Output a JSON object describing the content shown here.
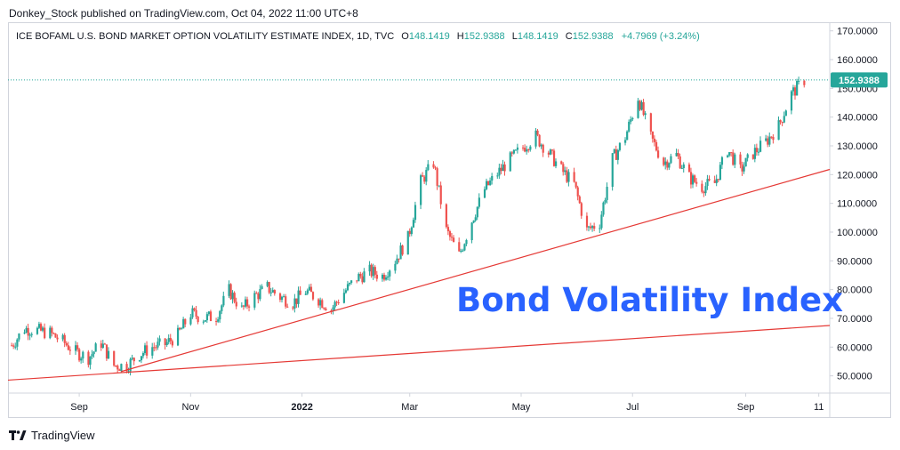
{
  "header": {
    "publisher": "Donkey_Stock published on TradingView.com, Oct 04, 2022 11:00 UTC+8"
  },
  "legend": {
    "symbol": "ICE BOFAML U.S. BOND MARKET OPTION VOLATILITY ESTIMATE INDEX, 1D, TVC",
    "o_label": "O",
    "o_value": "148.1419",
    "h_label": "H",
    "h_value": "152.9388",
    "l_label": "L",
    "l_value": "148.1419",
    "c_label": "C",
    "c_value": "152.9388",
    "change": "+4.7969 (+3.24%)"
  },
  "price_tag": "152.9388",
  "annotation": "Bond Volatility Index",
  "footer": {
    "brand": "TradingView",
    "logo_icon": "tradingview-logo-icon"
  },
  "colors": {
    "up": "#26a69a",
    "down": "#ef5350",
    "trendline": "#e53935",
    "annotation": "#2962ff",
    "price_tag": "#26a69a"
  },
  "chart_data": {
    "type": "candlestick",
    "title": "",
    "ylim": [
      44,
      173
    ],
    "ytick_labels": [
      "50.0000",
      "60.0000",
      "70.0000",
      "80.0000",
      "90.0000",
      "100.0000",
      "110.0000",
      "120.0000",
      "130.0000",
      "140.0000",
      "150.0000",
      "160.0000",
      "170.0000"
    ],
    "xtick_labels": [
      "Sep",
      "Nov",
      "2022",
      "Mar",
      "May",
      "Jul",
      "Sep",
      "11"
    ],
    "xtick_dates": [
      "2021-09-01",
      "2021-11-01",
      "2022-01-01",
      "2022-03-01",
      "2022-05-01",
      "2022-07-01",
      "2022-09-01",
      "2022-10-11"
    ],
    "x_range": [
      "2021-07-24",
      "2022-10-17"
    ],
    "closes": [
      [
        "2021-07-26",
        60.6
      ],
      [
        "2021-08-02",
        66.4
      ],
      [
        "2021-08-09",
        65.8
      ],
      [
        "2021-08-16",
        64.8
      ],
      [
        "2021-08-23",
        61.9
      ],
      [
        "2021-08-30",
        58.3
      ],
      [
        "2021-09-06",
        56.3
      ],
      [
        "2021-09-13",
        61.5
      ],
      [
        "2021-09-20",
        53.6
      ],
      [
        "2021-09-27",
        53.5
      ],
      [
        "2021-10-04",
        57.5
      ],
      [
        "2021-10-11",
        60.0
      ],
      [
        "2021-10-18",
        61.0
      ],
      [
        "2021-10-25",
        64.2
      ],
      [
        "2021-11-01",
        71.7
      ],
      [
        "2021-11-08",
        70.1
      ],
      [
        "2021-11-15",
        70.7
      ],
      [
        "2021-11-22",
        79.7
      ],
      [
        "2021-11-29",
        73.0
      ],
      [
        "2021-12-06",
        77.6
      ],
      [
        "2021-12-13",
        80.7
      ],
      [
        "2021-12-20",
        77.4
      ],
      [
        "2021-12-27",
        75.5
      ],
      [
        "2022-01-03",
        79.5
      ],
      [
        "2022-01-10",
        76.7
      ],
      [
        "2022-01-17",
        73.2
      ],
      [
        "2022-01-24",
        79.1
      ],
      [
        "2022-01-31",
        84.0
      ],
      [
        "2022-02-07",
        86.3
      ],
      [
        "2022-02-14",
        84.7
      ],
      [
        "2022-02-21",
        90.2
      ],
      [
        "2022-02-28",
        97.9
      ],
      [
        "2022-03-07",
        117.5
      ],
      [
        "2022-03-14",
        124.1
      ],
      [
        "2022-03-21",
        100.5
      ],
      [
        "2022-03-28",
        91.9
      ],
      [
        "2022-04-04",
        104.1
      ],
      [
        "2022-04-11",
        114.9
      ],
      [
        "2022-04-18",
        120.4
      ],
      [
        "2022-04-25",
        125.3
      ],
      [
        "2022-05-02",
        129.5
      ],
      [
        "2022-05-09",
        133.3
      ],
      [
        "2022-05-16",
        127.7
      ],
      [
        "2022-05-23",
        121.6
      ],
      [
        "2022-05-30",
        116.6
      ],
      [
        "2022-06-06",
        100.6
      ],
      [
        "2022-06-13",
        103.4
      ],
      [
        "2022-06-20",
        125.3
      ],
      [
        "2022-06-27",
        133.1
      ],
      [
        "2022-07-04",
        146.9
      ],
      [
        "2022-07-11",
        132.9
      ],
      [
        "2022-07-18",
        124.1
      ],
      [
        "2022-07-25",
        126.8
      ],
      [
        "2022-08-01",
        119.0
      ],
      [
        "2022-08-08",
        115.8
      ],
      [
        "2022-08-15",
        117.0
      ],
      [
        "2022-08-22",
        128.8
      ],
      [
        "2022-08-29",
        121.5
      ],
      [
        "2022-09-05",
        127.4
      ],
      [
        "2022-09-12",
        131.4
      ],
      [
        "2022-09-19",
        136.9
      ],
      [
        "2022-09-26",
        148.1
      ],
      [
        "2022-10-03",
        152.9
      ]
    ],
    "trendlines": [
      {
        "from": [
          "2021-07-24",
          48.5
        ],
        "to": [
          "2022-10-17",
          67.5
        ]
      },
      {
        "from": [
          "2021-09-24",
          51.5
        ],
        "to": [
          "2022-10-17",
          121.8
        ]
      }
    ]
  }
}
